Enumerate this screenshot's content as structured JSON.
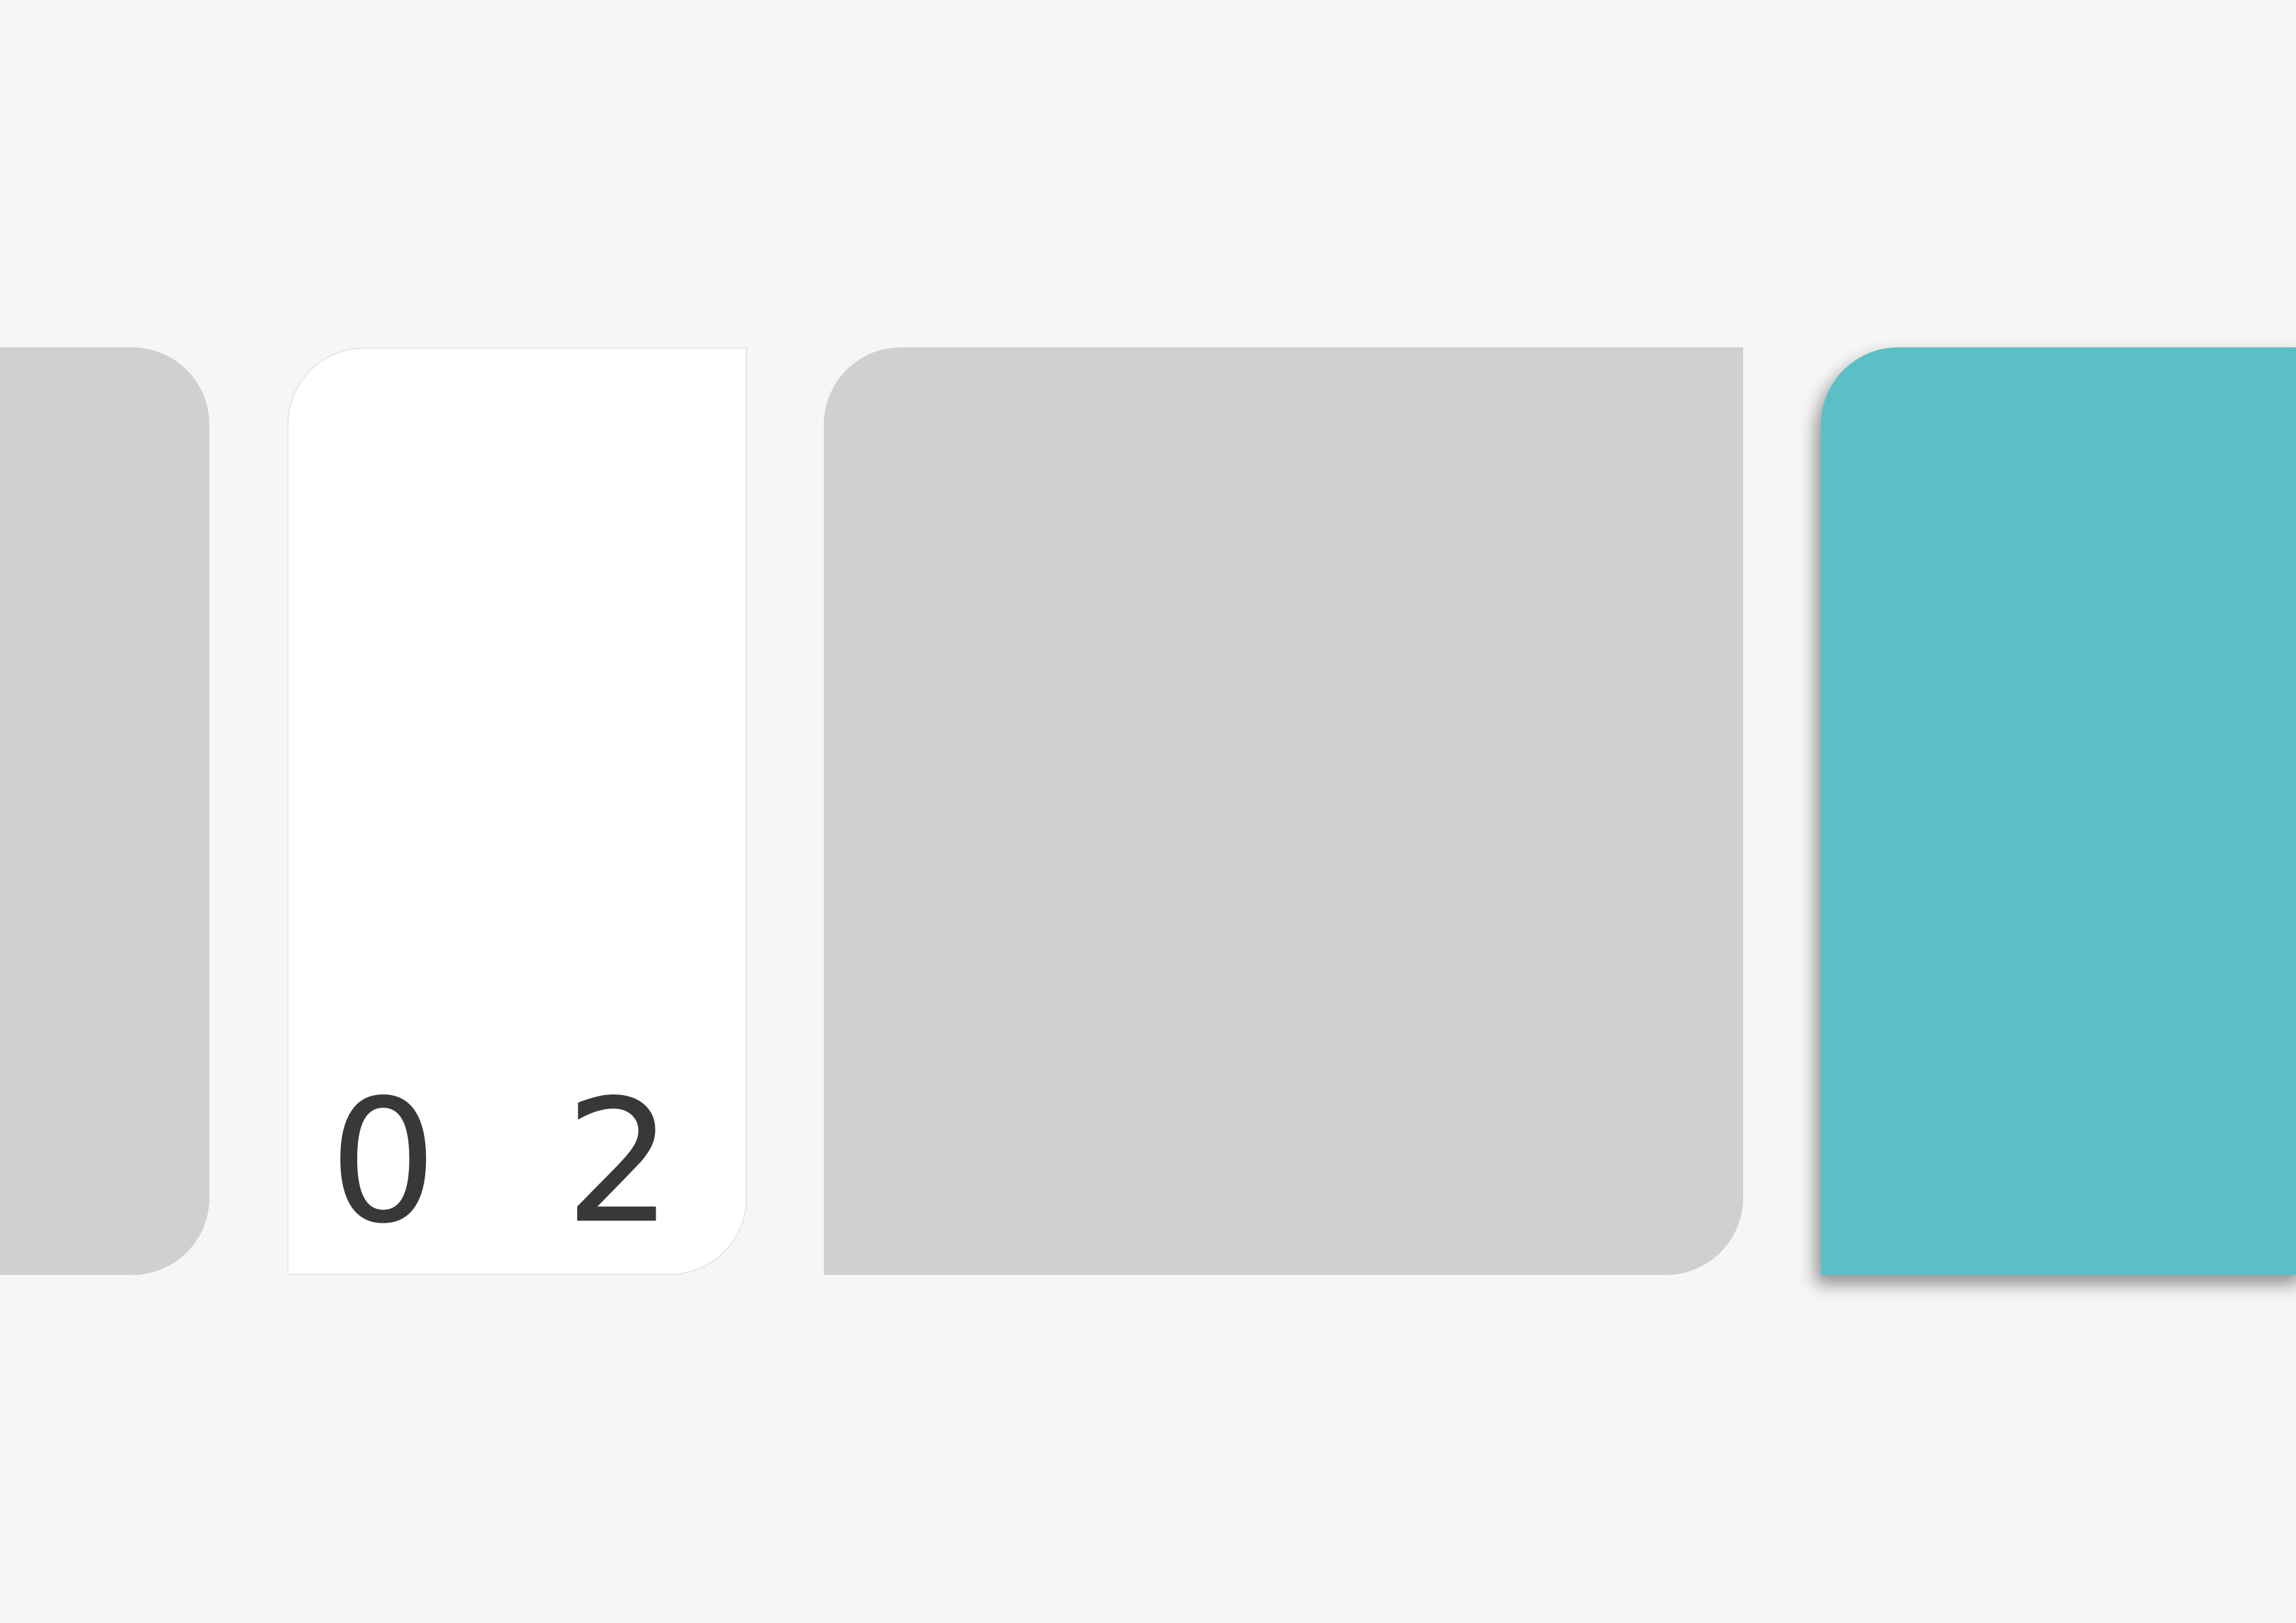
{
  "slide": {
    "background_color": "#f6f6f6",
    "cards": {
      "left_partial": {
        "color": "#d0d0d0"
      },
      "number_card": {
        "color": "#ffffff",
        "number": "0 2",
        "number_color": "#383838"
      },
      "wide_card": {
        "color": "#d0d0d0"
      },
      "accent_card": {
        "color": "#5bbfc6"
      }
    }
  }
}
